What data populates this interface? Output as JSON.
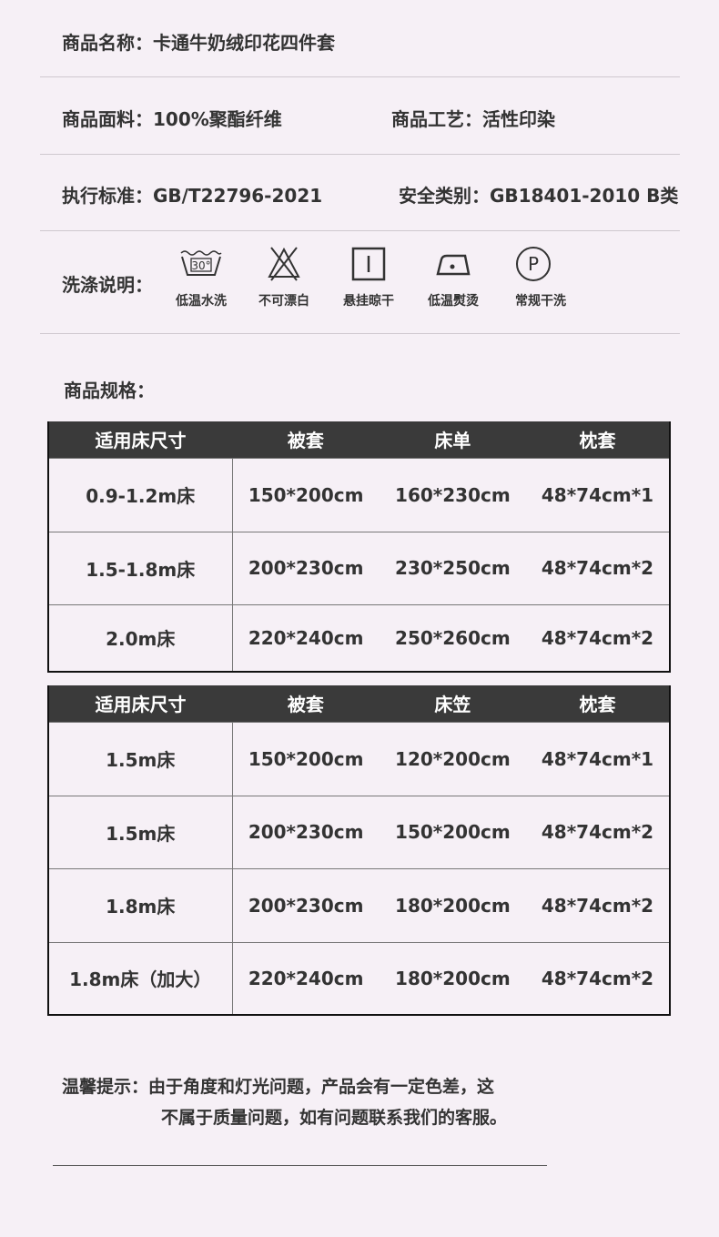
{
  "info": {
    "name": "商品名称：卡通牛奶绒印花四件套",
    "fabric": "商品面料：100%聚酯纤维",
    "craft": "商品工艺：活性印染",
    "standard": "执行标准：GB/T22796-2021",
    "safety": "安全类别：GB18401-2010  B类",
    "wash_label": "洗涤说明：",
    "wash_icons": [
      {
        "icon": "wash-30-icon",
        "text": "30°",
        "label": "低温水洗"
      },
      {
        "icon": "no-bleach-icon",
        "label": "不可漂白"
      },
      {
        "icon": "hang-dry-icon",
        "label": "悬挂晾干"
      },
      {
        "icon": "low-iron-icon",
        "label": "低温熨烫"
      },
      {
        "icon": "dry-clean-p-icon",
        "text": "P",
        "label": "常规干洗"
      }
    ],
    "spec_label": "商品规格："
  },
  "table1": {
    "headers": [
      "适用床尺寸",
      "被套",
      "床单",
      "枕套"
    ],
    "rows": [
      [
        "0.9-1.2m床",
        "150*200cm",
        "160*230cm",
        "48*74cm*1"
      ],
      [
        "1.5-1.8m床",
        "200*230cm",
        "230*250cm",
        "48*74cm*2"
      ],
      [
        "2.0m床",
        "220*240cm",
        "250*260cm",
        "48*74cm*2"
      ]
    ]
  },
  "table2": {
    "headers": [
      "适用床尺寸",
      "被套",
      "床笠",
      "枕套"
    ],
    "rows": [
      [
        "1.5m床",
        "150*200cm",
        "120*200cm",
        "48*74cm*1"
      ],
      [
        "1.5m床",
        "200*230cm",
        "150*200cm",
        "48*74cm*2"
      ],
      [
        "1.8m床",
        "200*230cm",
        "180*200cm",
        "48*74cm*2"
      ],
      [
        "1.8m床（加大）",
        "220*240cm",
        "180*200cm",
        "48*74cm*2"
      ]
    ]
  },
  "note": {
    "label": "温馨提示：",
    "line1": "由于角度和灯光问题，产品会有一定色差，这",
    "line2": "不属于质量问题，如有问题联系我们的客服。"
  },
  "colors": {
    "background": "#f6f0f6",
    "header": "#3a3a3a"
  }
}
